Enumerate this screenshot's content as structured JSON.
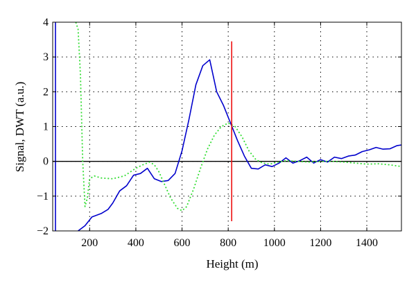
{
  "chart_data": {
    "type": "line",
    "xlabel": "Height (m)",
    "ylabel": "Signal, DWT (a.u.)",
    "xlim": [
      40,
      1550
    ],
    "ylim": [
      -2,
      4
    ],
    "xticks": [
      200,
      400,
      600,
      800,
      1000,
      1200,
      1400
    ],
    "yticks": [
      -2,
      -1,
      0,
      1,
      2,
      3,
      4
    ],
    "grid": true,
    "colors": {
      "signal": "#0000cc",
      "dwt": "#33dd33",
      "marker": "#ee1111",
      "zero": "#000000"
    },
    "series": [
      {
        "style": "solid",
        "color": "#0000cc",
        "x": [
          150,
          180,
          210,
          250,
          280,
          300,
          330,
          360,
          390,
          420,
          450,
          480,
          510,
          540,
          570,
          600,
          630,
          660,
          690,
          720,
          750,
          780,
          810,
          840,
          870,
          900,
          930,
          960,
          990,
          1020,
          1050,
          1080,
          1110,
          1140,
          1170,
          1200,
          1230,
          1260,
          1290,
          1320,
          1350,
          1380,
          1410,
          1440,
          1470,
          1500,
          1530,
          1550
        ],
        "y": [
          -2.0,
          -1.85,
          -1.6,
          -1.5,
          -1.38,
          -1.2,
          -0.85,
          -0.7,
          -0.4,
          -0.35,
          -0.2,
          -0.5,
          -0.58,
          -0.55,
          -0.35,
          0.3,
          1.2,
          2.2,
          2.75,
          2.92,
          2.0,
          1.6,
          1.1,
          0.6,
          0.15,
          -0.2,
          -0.22,
          -0.1,
          -0.15,
          -0.05,
          0.1,
          -0.05,
          0.02,
          0.12,
          -0.05,
          0.05,
          -0.02,
          0.12,
          0.08,
          0.15,
          0.18,
          0.28,
          0.33,
          0.4,
          0.35,
          0.36,
          0.45,
          0.47
        ]
      },
      {
        "style": "solid",
        "color": "#0000cc",
        "x": [
          52,
          52
        ],
        "y": [
          4.0,
          -2.0
        ]
      },
      {
        "style": "dotted",
        "color": "#33dd33",
        "x": [
          140,
          150,
          160,
          170,
          180,
          190,
          200,
          220,
          250,
          300,
          350,
          400,
          430,
          460,
          480,
          500,
          520,
          550,
          580,
          600,
          620,
          650,
          680,
          710,
          740,
          770,
          800,
          830,
          860,
          890,
          920,
          950,
          980,
          1010,
          1050,
          1100,
          1150,
          1200,
          1250,
          1300,
          1350,
          1400,
          1450,
          1500,
          1550
        ],
        "y": [
          4.0,
          3.8,
          2.5,
          0.0,
          -1.3,
          -1.05,
          -0.5,
          -0.42,
          -0.48,
          -0.5,
          -0.42,
          -0.2,
          -0.1,
          -0.02,
          -0.1,
          -0.3,
          -0.6,
          -1.05,
          -1.35,
          -1.42,
          -1.3,
          -0.8,
          -0.2,
          0.35,
          0.75,
          1.0,
          1.1,
          1.0,
          0.7,
          0.3,
          0.05,
          -0.05,
          -0.08,
          -0.03,
          0.02,
          0.0,
          -0.02,
          0.0,
          0.0,
          -0.02,
          -0.05,
          -0.08,
          -0.07,
          -0.1,
          -0.15
        ]
      }
    ],
    "vline": {
      "x": 815,
      "y": [
        -1.72,
        3.45
      ],
      "color": "#ee1111"
    },
    "hline": {
      "y": 0,
      "color": "#000000"
    }
  }
}
